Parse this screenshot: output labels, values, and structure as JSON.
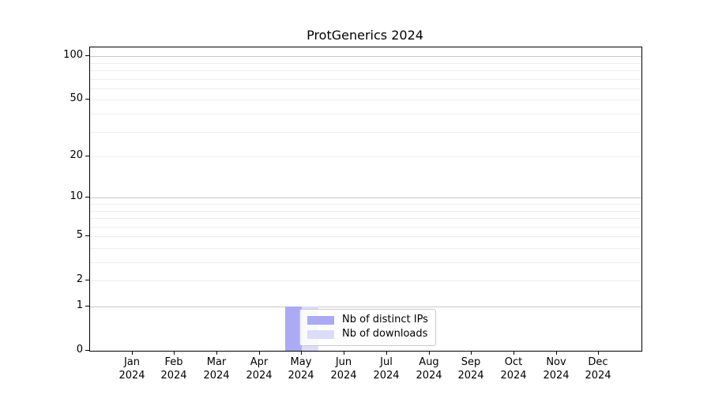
{
  "title": "ProtGenerics 2024",
  "chart_data": {
    "type": "bar",
    "title": "ProtGenerics 2024",
    "categories": [
      "Jan 2024",
      "Feb 2024",
      "Mar 2024",
      "Apr 2024",
      "May 2024",
      "Jun 2024",
      "Jul 2024",
      "Aug 2024",
      "Sep 2024",
      "Oct 2024",
      "Nov 2024",
      "Dec 2024"
    ],
    "x_tick_months": [
      "Jan",
      "Feb",
      "Mar",
      "Apr",
      "May",
      "Jun",
      "Jul",
      "Aug",
      "Sep",
      "Oct",
      "Nov",
      "Dec"
    ],
    "x_tick_year": "2024",
    "series": [
      {
        "name": "Nb of distinct IPs",
        "color": "#aaaaf5",
        "values": [
          0,
          0,
          0,
          0,
          1,
          0,
          0,
          0,
          0,
          0,
          0,
          0
        ]
      },
      {
        "name": "Nb of downloads",
        "color": "#dcdcf8",
        "values": [
          0,
          0,
          0,
          0,
          1,
          0,
          0,
          0,
          0,
          0,
          0,
          0
        ]
      }
    ],
    "y_axis": {
      "scale": "log1p",
      "ticks": [
        0,
        1,
        2,
        5,
        10,
        20,
        50,
        100
      ],
      "tick_labels": [
        "0",
        "1",
        "2",
        "5",
        "10",
        "20",
        "50",
        "100"
      ],
      "decade_gridlines": [
        1,
        10,
        100
      ],
      "minor_gridlines": [
        2,
        3,
        4,
        5,
        6,
        7,
        8,
        9,
        20,
        30,
        40,
        50,
        60,
        70,
        80,
        90
      ],
      "ylim": [
        0,
        115
      ]
    },
    "legend": {
      "entries": [
        "Nb of distinct IPs",
        "Nb of downloads"
      ],
      "position": "lower center"
    },
    "grid": true
  },
  "colors": {
    "background": "#ffffff",
    "spine": "#000000",
    "grid_decade": "#c9c9c9",
    "grid_minor": "#ededed",
    "text": "#000000",
    "legend_border": "#c9c9c9"
  }
}
